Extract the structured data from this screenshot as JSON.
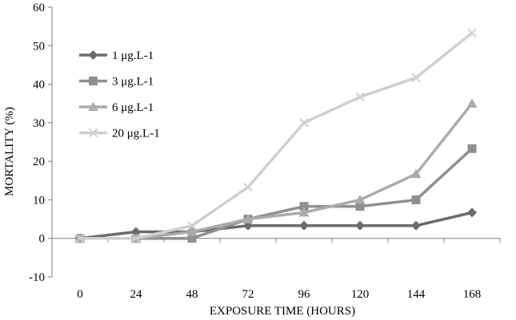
{
  "chart_data": {
    "type": "line",
    "title": "",
    "xlabel": "EXPOSURE TIME (HOURS)",
    "ylabel": "MORTALITY  (%)",
    "x": [
      0,
      24,
      48,
      72,
      96,
      120,
      144,
      168
    ],
    "x_tick_labels": [
      "0",
      "24",
      "48",
      "72",
      "96",
      "120",
      "144",
      "168"
    ],
    "ylim": [
      -10,
      60
    ],
    "y_ticks": [
      -10,
      0,
      10,
      20,
      30,
      40,
      50,
      60
    ],
    "y_tick_labels": [
      "-10",
      "0",
      "10",
      "20",
      "30",
      "40",
      "50",
      "60"
    ],
    "grid": false,
    "legend_position": "top-left",
    "series": [
      {
        "name": "1 μg.L-1",
        "marker": "diamond",
        "color": "#6b6b6b",
        "values": [
          0,
          1.7,
          1.7,
          3.3,
          3.3,
          3.3,
          3.3,
          6.7
        ]
      },
      {
        "name": "3 μg.L-1",
        "marker": "square",
        "color": "#8f8f8f",
        "values": [
          0,
          0,
          0,
          5.0,
          8.3,
          8.3,
          10.0,
          23.3
        ]
      },
      {
        "name": "6 μg.L-1",
        "marker": "triangle",
        "color": "#ababab",
        "values": [
          0,
          0,
          1.7,
          5.0,
          6.7,
          10.0,
          16.7,
          35.0
        ]
      },
      {
        "name": "20 μg.L-1",
        "marker": "cross",
        "color": "#cfcfcf",
        "values": [
          0,
          0,
          3.3,
          13.3,
          30.0,
          36.7,
          41.7,
          53.3
        ]
      }
    ]
  }
}
